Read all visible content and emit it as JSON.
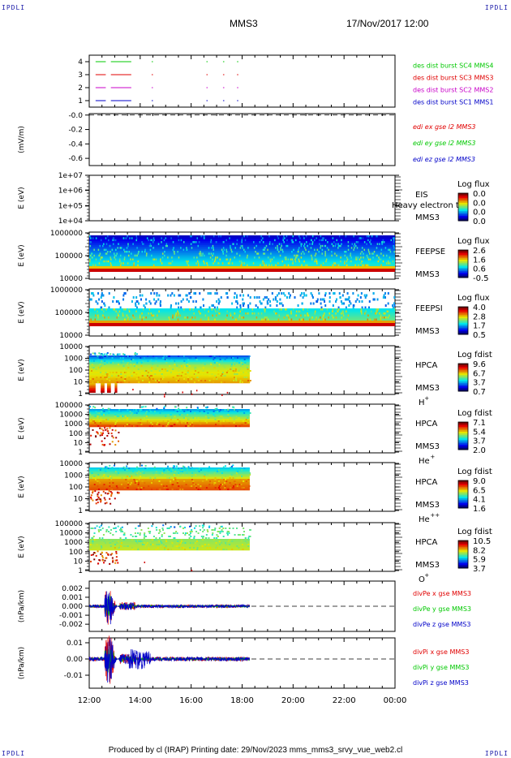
{
  "corners": {
    "tl": "IPDLI",
    "tr": "IPDLI",
    "bl": "IPDLI",
    "br": "IPDLI"
  },
  "header": {
    "title": "MMS3",
    "date": "17/Nov/2017 12:00"
  },
  "footer": {
    "text": "Produced by cl (IRAP)   Printing date: 29/Nov/2023   mms_mms3_srvy_vue_web2.cl"
  },
  "colors": {
    "sc1": "#0000c8",
    "sc2": "#c800c8",
    "sc3": "#e00000",
    "sc4": "#00c800",
    "x": "#e00000",
    "y": "#00c800",
    "z": "#0000c8"
  },
  "chart_data": [
    {
      "type": "line",
      "id": "des-burst",
      "title": "",
      "ylabel": "",
      "yticks": [
        "1",
        "2",
        "3",
        "4"
      ],
      "ylim": [
        0.5,
        4.5
      ],
      "series": [
        {
          "name": "des dist burst SC1 MMS1",
          "level": 1,
          "color": "#0000c8",
          "segments": [
            [
              12.25,
              12.65
            ],
            [
              12.85,
              13.65
            ],
            [
              14.45,
              14.5
            ],
            [
              16.6,
              16.65
            ],
            [
              17.25,
              17.3
            ],
            [
              17.8,
              17.85
            ]
          ]
        },
        {
          "name": "des dist burst SC2 MMS2",
          "level": 2,
          "color": "#c800c8",
          "segments": [
            [
              12.25,
              12.65
            ],
            [
              12.85,
              13.65
            ],
            [
              14.45,
              14.5
            ],
            [
              16.6,
              16.65
            ],
            [
              17.25,
              17.3
            ],
            [
              17.8,
              17.85
            ]
          ]
        },
        {
          "name": "des dist burst SC3 MMS3",
          "level": 3,
          "color": "#e00000",
          "segments": [
            [
              12.25,
              12.65
            ],
            [
              12.85,
              13.65
            ],
            [
              14.45,
              14.5
            ],
            [
              16.6,
              16.65
            ],
            [
              17.25,
              17.3
            ],
            [
              17.8,
              17.85
            ]
          ]
        },
        {
          "name": "des dist burst SC4 MMS4",
          "level": 4,
          "color": "#00c800",
          "segments": [
            [
              12.25,
              12.65
            ],
            [
              12.85,
              13.65
            ],
            [
              14.45,
              14.5
            ],
            [
              16.6,
              16.65
            ],
            [
              17.25,
              17.3
            ],
            [
              17.8,
              17.85
            ]
          ]
        }
      ]
    },
    {
      "type": "line",
      "id": "edi",
      "ylabel": "(mV/m)",
      "yticks": [
        "-0.0",
        "-0.2",
        "-0.4",
        "-0.6"
      ],
      "ylim": [
        -0.7,
        0.02
      ],
      "series": [
        {
          "name": "edi ex gse l2 MMS3",
          "color": "#e00000"
        },
        {
          "name": "edi ey gse l2 MMS3",
          "color": "#00c800"
        },
        {
          "name": "edi ez gse l2 MMS3",
          "color": "#0000c8"
        }
      ]
    },
    {
      "type": "heatmap",
      "id": "eis",
      "ylabel": "E (eV)",
      "yticks": [
        "1e+07",
        "1e+06",
        "1e+05",
        "1e+04"
      ],
      "labels": [
        "EIS",
        "MMS3"
      ],
      "overlay": "Heavy electron to",
      "colorbar": {
        "title": "Log flux",
        "ticks": [
          "0.0",
          "0.0",
          "0.0",
          "0.0"
        ]
      }
    },
    {
      "type": "heatmap",
      "id": "feepse",
      "ylabel": "E (eV)",
      "yticks": [
        "1000000",
        "100000",
        "10000"
      ],
      "labels": [
        "FEEPSE",
        "MMS3"
      ],
      "colorbar": {
        "title": "Log flux",
        "ticks": [
          "2.6",
          "1.6",
          "0.6",
          "-0.5"
        ]
      }
    },
    {
      "type": "heatmap",
      "id": "feepsi",
      "ylabel": "E (eV)",
      "yticks": [
        "1000000",
        "100000",
        "10000"
      ],
      "labels": [
        "FEEPSI",
        "MMS3"
      ],
      "colorbar": {
        "title": "Log flux",
        "ticks": [
          "4.0",
          "2.8",
          "1.7",
          "0.5"
        ]
      }
    },
    {
      "type": "heatmap",
      "id": "hpca-h",
      "ylabel": "E (eV)",
      "yticks": [
        "10000",
        "1000",
        "100",
        "10",
        "1"
      ],
      "labels": [
        "HPCA",
        "MMS3"
      ],
      "species": "H",
      "charge": "+",
      "colorbar": {
        "title": "Log fdist",
        "ticks": [
          "9.6",
          "6.7",
          "3.7",
          "0.7"
        ]
      }
    },
    {
      "type": "heatmap",
      "id": "hpca-he",
      "ylabel": "E (eV)",
      "yticks": [
        "100000",
        "10000",
        "1000",
        "100",
        "10",
        "1"
      ],
      "labels": [
        "HPCA",
        "MMS3"
      ],
      "species": "He",
      "charge": "+",
      "colorbar": {
        "title": "Log fdist",
        "ticks": [
          "7.1",
          "5.4",
          "3.7",
          "2.0"
        ]
      }
    },
    {
      "type": "heatmap",
      "id": "hpca-he2",
      "ylabel": "E (eV)",
      "yticks": [
        "10000",
        "1000",
        "100",
        "10",
        "1"
      ],
      "labels": [
        "HPCA",
        "MMS3"
      ],
      "species": "He",
      "charge": "++",
      "colorbar": {
        "title": "Log fdist",
        "ticks": [
          "9.0",
          "6.5",
          "4.1",
          "1.6"
        ]
      }
    },
    {
      "type": "heatmap",
      "id": "hpca-o",
      "ylabel": "E (eV)",
      "yticks": [
        "100000",
        "10000",
        "1000",
        "100",
        "10",
        "1"
      ],
      "labels": [
        "HPCA",
        "MMS3"
      ],
      "species": "O",
      "charge": "+",
      "colorbar": {
        "title": "Log fdist",
        "ticks": [
          "10.5",
          "8.2",
          "5.9",
          "3.7"
        ]
      }
    },
    {
      "type": "line",
      "id": "divpe",
      "ylabel": "(nPa/km)",
      "yticks": [
        "0.002",
        "0.001",
        "0.000",
        "-0.001",
        "-0.002"
      ],
      "ylim": [
        -0.0028,
        0.0028
      ],
      "series": [
        {
          "name": "divPe x gse MMS3",
          "color": "#e00000"
        },
        {
          "name": "divPe y gse MMS3",
          "color": "#00c800"
        },
        {
          "name": "divPe z gse MMS3",
          "color": "#0000c8"
        }
      ]
    },
    {
      "type": "line",
      "id": "divpi",
      "ylabel": "(nPa/km)",
      "yticks": [
        "0.01",
        "0.00",
        "-0.01"
      ],
      "ylim": [
        -0.018,
        0.013
      ],
      "series": [
        {
          "name": "divPi x gse MMS3",
          "color": "#e00000"
        },
        {
          "name": "divPi y gse MMS3",
          "color": "#00c800"
        },
        {
          "name": "divPi z gse MMS3",
          "color": "#0000c8"
        }
      ]
    }
  ],
  "time_axis": {
    "ticks": [
      "12:00",
      "14:00",
      "16:00",
      "18:00",
      "20:00",
      "22:00",
      "00:00"
    ],
    "range_hours": [
      12,
      24
    ],
    "data_end_hours": 18.3
  }
}
